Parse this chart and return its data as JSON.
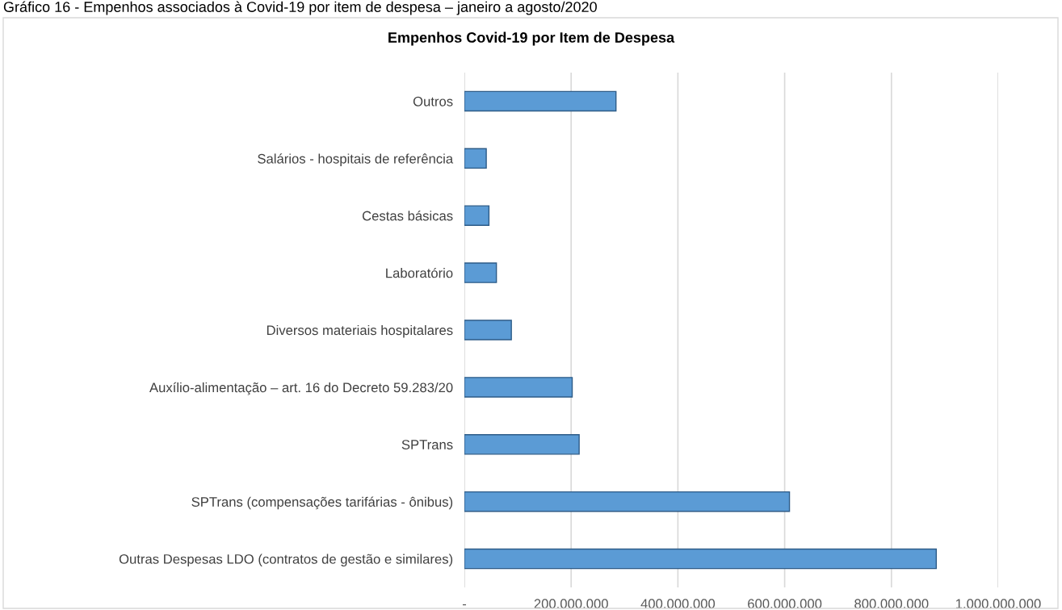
{
  "chart_data": {
    "type": "bar",
    "orientation": "horizontal",
    "title": "Empenhos Covid-19 por Item de Despesa",
    "annotations": [
      "Gráfico 16 - Empenhos associados à Covid-19 por item de despesa – janeiro a agosto/2020"
    ],
    "categories": [
      "Outros",
      "Salários - hospitais de referência",
      "Cestas básicas",
      "Laboratório",
      "Diversos materiais hospitalares",
      "Auxílio-alimentação – art. 16 do Decreto 59.283/20",
      "SPTrans",
      "SPTrans (compensações tarifárias - ônibus)",
      "Outras Despesas LDO (contratos de gestão e similares)"
    ],
    "values": [
      284000000,
      41000000,
      46000000,
      60000000,
      88000000,
      202000000,
      215000000,
      609000000,
      884000000
    ],
    "color": "#5b9bd5",
    "xlim": [
      0,
      1000000000
    ],
    "xticks": [
      {
        "value": 0,
        "label": "-"
      },
      {
        "value": 200000000,
        "label": "200.000.000"
      },
      {
        "value": 400000000,
        "label": "400.000.000"
      },
      {
        "value": 600000000,
        "label": "600.000.000"
      },
      {
        "value": 800000000,
        "label": "800.000.000"
      },
      {
        "value": 1000000000,
        "label": "1.000.000.000"
      }
    ],
    "grid": "x",
    "legend": false
  }
}
